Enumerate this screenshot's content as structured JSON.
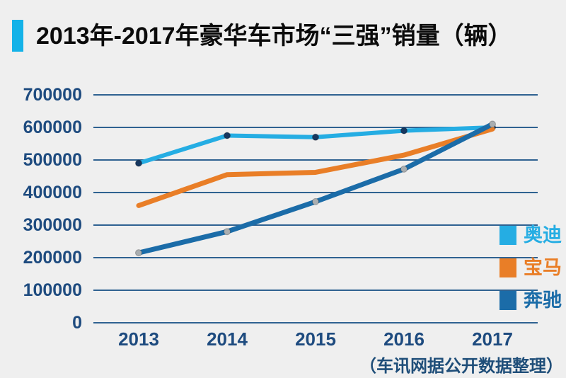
{
  "header": {
    "title": "2013年-2017年豪华车市场“三强”销量（辆）",
    "accent_color": "#14B2E8"
  },
  "chart_data": {
    "type": "line",
    "title": "2013年-2017年豪华车市场“三强”销量（辆）",
    "categories": [
      "2013",
      "2014",
      "2015",
      "2016",
      "2017"
    ],
    "series": [
      {
        "name": "奥迪",
        "color": "#25ADE3",
        "marker_color": "#16375F",
        "line_width": 6,
        "values": [
          490000,
          575000,
          570000,
          590000,
          600000
        ]
      },
      {
        "name": "宝马",
        "color": "#E97E27",
        "marker_color": null,
        "line_width": 7,
        "values": [
          360000,
          455000,
          462000,
          515000,
          595000
        ]
      },
      {
        "name": "奔驰",
        "color": "#1B6CA8",
        "marker_color": "#A9AEB1",
        "line_width": 7,
        "values": [
          215000,
          280000,
          372000,
          472000,
          610000
        ]
      }
    ],
    "ylim": [
      0,
      700000
    ],
    "yticks": [
      0,
      100000,
      200000,
      300000,
      400000,
      500000,
      600000,
      700000
    ],
    "xlabel": "",
    "ylabel": "",
    "grid": "horizontal",
    "gridline_color": "#2F6291",
    "legend_position": "right-inside"
  },
  "footer": {
    "source": "（车讯网据公开数据整理）"
  },
  "colors": {
    "background": "#EFEFEF",
    "tick_label": "#1E4B7F",
    "title_text": "#0B0B0B"
  }
}
